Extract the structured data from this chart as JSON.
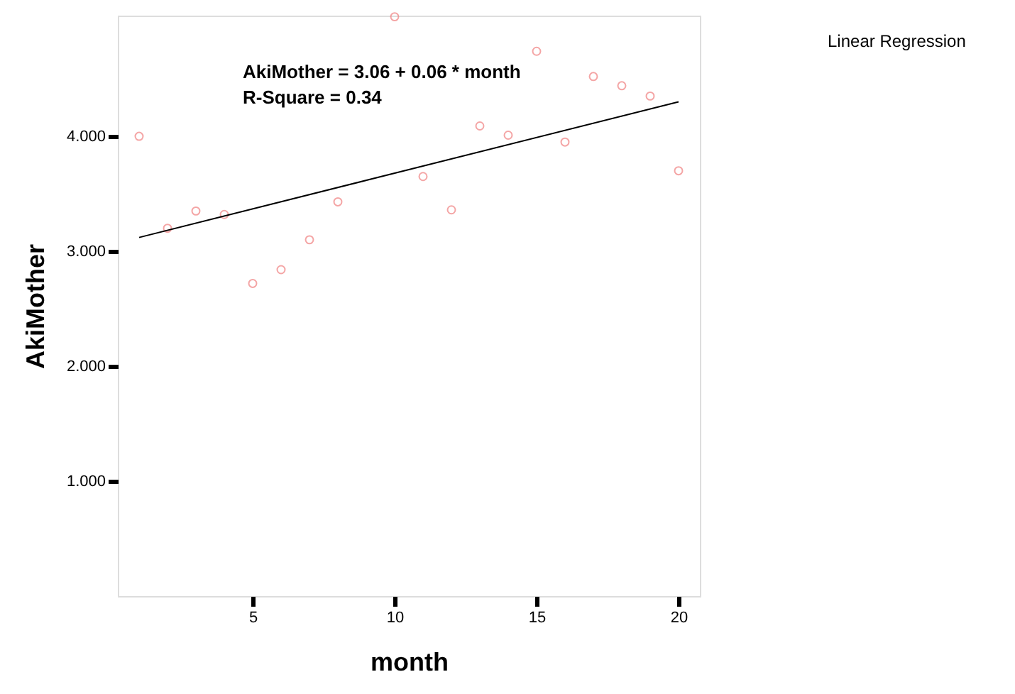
{
  "chart_data": {
    "type": "scatter",
    "xlabel": "month",
    "ylabel": "AkiMother",
    "series": [
      {
        "color": "#f08080",
        "marker": "circle",
        "x": [
          1,
          2,
          3,
          4,
          5,
          6,
          7,
          8,
          10,
          11,
          12,
          13,
          14,
          15,
          16,
          17,
          18,
          19,
          20
        ],
        "values": [
          4.0,
          3.2,
          3.35,
          3.32,
          2.72,
          2.84,
          3.1,
          3.43,
          5.04,
          3.65,
          3.36,
          4.09,
          4.01,
          4.74,
          3.95,
          4.52,
          4.44,
          4.35,
          3.7
        ]
      },
      {
        "type": "line",
        "color": "#000000",
        "x": [
          1,
          20
        ],
        "values": [
          3.12,
          4.3
        ]
      }
    ],
    "xlim": [
      0.25,
      20.75
    ],
    "ylim": [
      0,
      5.05
    ],
    "xticks": [
      5,
      10,
      15,
      20
    ],
    "yticks": [
      {
        "value": 1,
        "label": "1.000"
      },
      {
        "value": 2,
        "label": "2.000"
      },
      {
        "value": 3,
        "label": "3.000"
      },
      {
        "value": 4,
        "label": "4.000"
      }
    ],
    "grid": false,
    "annotations": [
      "AkiMother = 3.06 + 0.06 * month",
      "R-Square = 0.34",
      "Linear Regression"
    ]
  }
}
